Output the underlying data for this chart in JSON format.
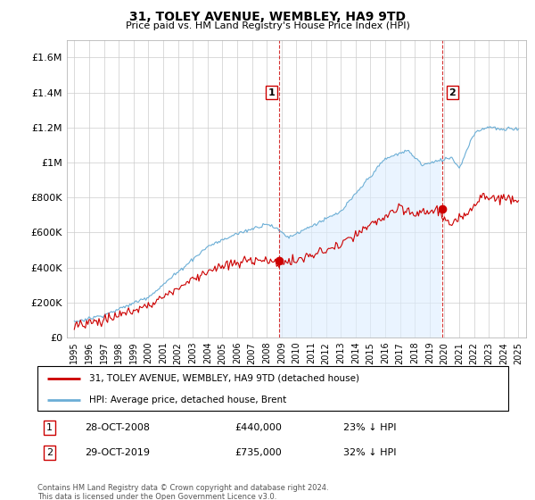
{
  "title": "31, TOLEY AVENUE, WEMBLEY, HA9 9TD",
  "subtitle": "Price paid vs. HM Land Registry's House Price Index (HPI)",
  "legend_line1": "31, TOLEY AVENUE, WEMBLEY, HA9 9TD (detached house)",
  "legend_line2": "HPI: Average price, detached house, Brent",
  "annotation1_date": "28-OCT-2008",
  "annotation1_price": "£440,000",
  "annotation1_hpi": "23% ↓ HPI",
  "annotation2_date": "29-OCT-2019",
  "annotation2_price": "£735,000",
  "annotation2_hpi": "32% ↓ HPI",
  "footnote": "Contains HM Land Registry data © Crown copyright and database right 2024.\nThis data is licensed under the Open Government Licence v3.0.",
  "red_color": "#cc0000",
  "blue_color": "#6baed6",
  "blue_fill": "#ddeeff",
  "marker1_x": 2008.83,
  "marker2_x": 2019.83,
  "marker1_y": 440000,
  "marker2_y": 735000,
  "ylim": [
    0,
    1700000
  ],
  "xlim": [
    1994.5,
    2025.5
  ],
  "yticks": [
    0,
    200000,
    400000,
    600000,
    800000,
    1000000,
    1200000,
    1400000,
    1600000
  ],
  "ytick_labels": [
    "£0",
    "£200K",
    "£400K",
    "£600K",
    "£800K",
    "£1M",
    "£1.2M",
    "£1.4M",
    "£1.6M"
  ],
  "xticks": [
    1995,
    1996,
    1997,
    1998,
    1999,
    2000,
    2001,
    2002,
    2003,
    2004,
    2005,
    2006,
    2007,
    2008,
    2009,
    2010,
    2011,
    2012,
    2013,
    2014,
    2015,
    2016,
    2017,
    2018,
    2019,
    2020,
    2021,
    2022,
    2023,
    2024,
    2025
  ]
}
